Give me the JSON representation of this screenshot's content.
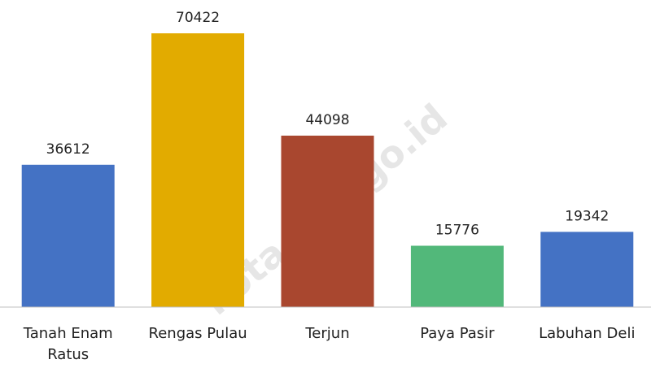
{
  "chart_data": {
    "type": "bar",
    "categories": [
      "Tanah Enam Ratus",
      "Rengas Pulau",
      "Terjun",
      "Paya Pasir",
      "Labuhan Deli"
    ],
    "values": [
      36612,
      70422,
      44098,
      15776,
      19342
    ],
    "colors": [
      "#4472c4",
      "#e2ab00",
      "#a9472f",
      "#52b87a",
      "#4472c4"
    ],
    "ylim": [
      0,
      80000
    ],
    "watermark": "kota.bps.go.id"
  }
}
